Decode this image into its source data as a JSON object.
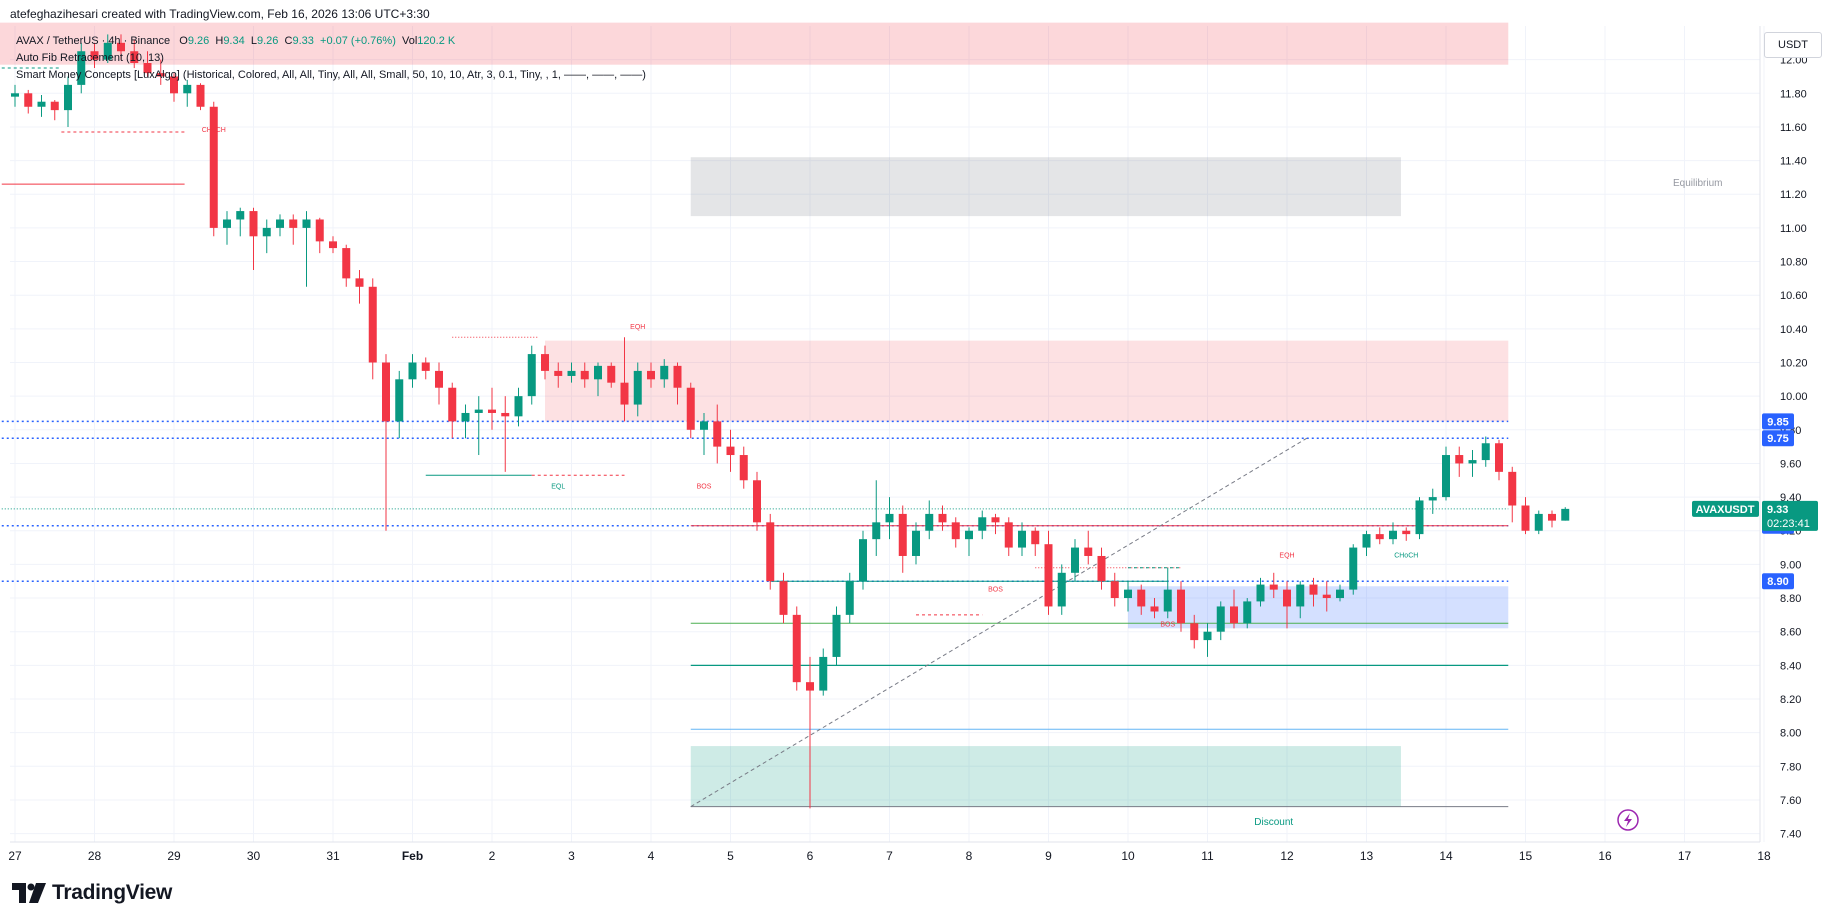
{
  "header": {
    "credit": "atefeghazihesari created with TradingView.com, Feb 16, 2026 13:06 UTC+3:30",
    "symbol": "AVAX / TetherUS · 4h · Binance",
    "open_label": "O",
    "open": "9.26",
    "high_label": "H",
    "high": "9.34",
    "low_label": "L",
    "low": "9.26",
    "close_label": "C",
    "close": "9.33",
    "change": "+0.07 (+0.76%)",
    "vol_label": "Vol",
    "volume": "120.2 K",
    "indicator1": "Auto Fib Retracement (10, 13)",
    "indicator2": "Smart Money Concepts [LuxAlgo] (Historical, Colored, All, All, Tiny, All, All, Small, 50, 10, 10, Atr, 3, 0.1, Tiny, , 1, ——, ——, ——)"
  },
  "footer": {
    "brand": "TradingView"
  },
  "axis": {
    "unit": "USDT"
  },
  "colors": {
    "up": "#089981",
    "down": "#f23645",
    "bg": "#ffffff",
    "grid": "#f0f3fa",
    "blue": "#2962ff"
  },
  "chart_data": {
    "type": "candlestick",
    "ylim": [
      7.35,
      12.2
    ],
    "yticks": [
      "12.00",
      "11.80",
      "11.60",
      "11.40",
      "11.20",
      "11.00",
      "10.80",
      "10.60",
      "10.40",
      "10.20",
      "10.00",
      "9.80",
      "9.60",
      "9.40",
      "9.20",
      "9.00",
      "8.80",
      "8.60",
      "8.40",
      "8.20",
      "8.00",
      "7.80",
      "7.60",
      "7.40"
    ],
    "xticks": [
      {
        "label": "27",
        "i": 0
      },
      {
        "label": "28",
        "i": 6
      },
      {
        "label": "29",
        "i": 12
      },
      {
        "label": "30",
        "i": 18
      },
      {
        "label": "31",
        "i": 24
      },
      {
        "label": "Feb",
        "i": 30
      },
      {
        "label": "2",
        "i": 36
      },
      {
        "label": "3",
        "i": 42
      },
      {
        "label": "4",
        "i": 48
      },
      {
        "label": "5",
        "i": 54
      },
      {
        "label": "6",
        "i": 60
      },
      {
        "label": "7",
        "i": 66
      },
      {
        "label": "8",
        "i": 72
      },
      {
        "label": "9",
        "i": 78
      },
      {
        "label": "10",
        "i": 84
      },
      {
        "label": "11",
        "i": 90
      },
      {
        "label": "12",
        "i": 96
      },
      {
        "label": "13",
        "i": 102
      },
      {
        "label": "14",
        "i": 108
      },
      {
        "label": "15",
        "i": 114
      },
      {
        "label": "16",
        "i": 120
      },
      {
        "label": "17",
        "i": 126
      },
      {
        "label": "18",
        "i": 132
      }
    ],
    "ohlc": [
      [
        11.78,
        11.85,
        11.72,
        11.8
      ],
      [
        11.8,
        11.82,
        11.68,
        11.72
      ],
      [
        11.72,
        11.79,
        11.66,
        11.75
      ],
      [
        11.75,
        11.76,
        11.64,
        11.7
      ],
      [
        11.7,
        11.9,
        11.6,
        11.85
      ],
      [
        11.85,
        12.1,
        11.8,
        12.05
      ],
      [
        12.05,
        12.1,
        11.95,
        12.0
      ],
      [
        12.0,
        12.15,
        11.98,
        12.1
      ],
      [
        12.1,
        12.15,
        12.0,
        12.05
      ],
      [
        12.05,
        12.12,
        11.95,
        11.98
      ],
      [
        11.98,
        12.05,
        11.9,
        11.92
      ],
      [
        11.92,
        12.0,
        11.85,
        11.9
      ],
      [
        11.9,
        11.92,
        11.75,
        11.8
      ],
      [
        11.8,
        11.88,
        11.72,
        11.85
      ],
      [
        11.85,
        11.86,
        11.7,
        11.72
      ],
      [
        11.72,
        11.75,
        10.95,
        11.0
      ],
      [
        11.0,
        11.1,
        10.9,
        11.05
      ],
      [
        11.05,
        11.12,
        10.95,
        11.1
      ],
      [
        11.1,
        11.12,
        10.75,
        10.95
      ],
      [
        10.95,
        11.05,
        10.85,
        11.0
      ],
      [
        11.0,
        11.08,
        10.95,
        11.05
      ],
      [
        11.05,
        11.08,
        10.9,
        11.0
      ],
      [
        11.0,
        11.1,
        10.65,
        11.05
      ],
      [
        11.05,
        11.06,
        10.85,
        10.92
      ],
      [
        10.92,
        10.95,
        10.85,
        10.88
      ],
      [
        10.88,
        10.9,
        10.65,
        10.7
      ],
      [
        10.7,
        10.75,
        10.55,
        10.65
      ],
      [
        10.65,
        10.7,
        10.1,
        10.2
      ],
      [
        10.2,
        10.25,
        9.2,
        9.85
      ],
      [
        9.85,
        10.15,
        9.75,
        10.1
      ],
      [
        10.1,
        10.25,
        10.05,
        10.2
      ],
      [
        10.2,
        10.23,
        10.1,
        10.15
      ],
      [
        10.15,
        10.2,
        9.95,
        10.05
      ],
      [
        10.05,
        10.08,
        9.75,
        9.85
      ],
      [
        9.85,
        9.95,
        9.75,
        9.9
      ],
      [
        9.9,
        10.0,
        9.65,
        9.92
      ],
      [
        9.92,
        10.05,
        9.8,
        9.9
      ],
      [
        9.9,
        10.0,
        9.55,
        9.88
      ],
      [
        9.88,
        10.05,
        9.82,
        10.0
      ],
      [
        10.0,
        10.3,
        9.95,
        10.25
      ],
      [
        10.25,
        10.3,
        10.1,
        10.15
      ],
      [
        10.15,
        10.2,
        10.05,
        10.12
      ],
      [
        10.12,
        10.2,
        10.08,
        10.15
      ],
      [
        10.15,
        10.2,
        10.05,
        10.1
      ],
      [
        10.1,
        10.2,
        10.0,
        10.18
      ],
      [
        10.18,
        10.2,
        10.05,
        10.08
      ],
      [
        10.08,
        10.35,
        9.85,
        9.95
      ],
      [
        9.95,
        10.2,
        9.88,
        10.15
      ],
      [
        10.15,
        10.2,
        10.05,
        10.1
      ],
      [
        10.1,
        10.22,
        10.05,
        10.18
      ],
      [
        10.18,
        10.2,
        9.95,
        10.05
      ],
      [
        10.05,
        10.08,
        9.75,
        9.8
      ],
      [
        9.8,
        9.9,
        9.65,
        9.85
      ],
      [
        9.85,
        9.95,
        9.6,
        9.7
      ],
      [
        9.7,
        9.8,
        9.55,
        9.65
      ],
      [
        9.65,
        9.7,
        9.45,
        9.5
      ],
      [
        9.5,
        9.55,
        9.2,
        9.25
      ],
      [
        9.25,
        9.3,
        8.85,
        8.9
      ],
      [
        8.9,
        8.95,
        8.65,
        8.7
      ],
      [
        8.7,
        8.75,
        8.25,
        8.3
      ],
      [
        8.3,
        8.45,
        7.55,
        8.25
      ],
      [
        8.25,
        8.5,
        8.22,
        8.45
      ],
      [
        8.45,
        8.75,
        8.4,
        8.7
      ],
      [
        8.7,
        8.95,
        8.65,
        8.9
      ],
      [
        8.9,
        9.2,
        8.85,
        9.15
      ],
      [
        9.15,
        9.5,
        9.05,
        9.25
      ],
      [
        9.25,
        9.4,
        9.15,
        9.3
      ],
      [
        9.3,
        9.35,
        8.95,
        9.05
      ],
      [
        9.05,
        9.25,
        9.0,
        9.2
      ],
      [
        9.2,
        9.38,
        9.15,
        9.3
      ],
      [
        9.3,
        9.35,
        9.2,
        9.25
      ],
      [
        9.25,
        9.28,
        9.1,
        9.15
      ],
      [
        9.15,
        9.22,
        9.05,
        9.2
      ],
      [
        9.2,
        9.32,
        9.15,
        9.28
      ],
      [
        9.28,
        9.3,
        9.18,
        9.25
      ],
      [
        9.25,
        9.28,
        9.05,
        9.1
      ],
      [
        9.1,
        9.25,
        9.05,
        9.2
      ],
      [
        9.2,
        9.22,
        9.05,
        9.12
      ],
      [
        9.12,
        9.2,
        8.7,
        8.75
      ],
      [
        8.75,
        9.0,
        8.7,
        8.95
      ],
      [
        8.95,
        9.15,
        8.9,
        9.1
      ],
      [
        9.1,
        9.2,
        9.0,
        9.05
      ],
      [
        9.05,
        9.1,
        8.85,
        8.9
      ],
      [
        8.9,
        8.95,
        8.75,
        8.8
      ],
      [
        8.8,
        8.9,
        8.72,
        8.85
      ],
      [
        8.85,
        8.88,
        8.7,
        8.75
      ],
      [
        8.75,
        8.8,
        8.68,
        8.72
      ],
      [
        8.72,
        8.98,
        8.68,
        8.85
      ],
      [
        8.85,
        8.9,
        8.6,
        8.65
      ],
      [
        8.65,
        8.7,
        8.5,
        8.55
      ],
      [
        8.55,
        8.65,
        8.45,
        8.6
      ],
      [
        8.6,
        8.78,
        8.55,
        8.75
      ],
      [
        8.75,
        8.85,
        8.62,
        8.65
      ],
      [
        8.65,
        8.8,
        8.62,
        8.78
      ],
      [
        8.78,
        8.92,
        8.75,
        8.88
      ],
      [
        8.88,
        8.95,
        8.8,
        8.85
      ],
      [
        8.85,
        8.9,
        8.62,
        8.75
      ],
      [
        8.75,
        8.9,
        8.68,
        8.88
      ],
      [
        8.88,
        8.92,
        8.75,
        8.82
      ],
      [
        8.82,
        8.9,
        8.72,
        8.8
      ],
      [
        8.8,
        8.88,
        8.78,
        8.85
      ],
      [
        8.85,
        9.12,
        8.82,
        9.1
      ],
      [
        9.1,
        9.2,
        9.05,
        9.18
      ],
      [
        9.18,
        9.22,
        9.12,
        9.15
      ],
      [
        9.15,
        9.25,
        9.12,
        9.2
      ],
      [
        9.2,
        9.22,
        9.14,
        9.18
      ],
      [
        9.18,
        9.4,
        9.15,
        9.38
      ],
      [
        9.38,
        9.45,
        9.3,
        9.4
      ],
      [
        9.4,
        9.7,
        9.38,
        9.65
      ],
      [
        9.65,
        9.7,
        9.52,
        9.6
      ],
      [
        9.6,
        9.68,
        9.52,
        9.62
      ],
      [
        9.62,
        9.76,
        9.58,
        9.72
      ],
      [
        9.72,
        9.74,
        9.5,
        9.55
      ],
      [
        9.55,
        9.58,
        9.25,
        9.35
      ],
      [
        9.35,
        9.4,
        9.18,
        9.2
      ],
      [
        9.2,
        9.32,
        9.18,
        9.3
      ],
      [
        9.3,
        9.32,
        9.22,
        9.26
      ],
      [
        9.26,
        9.34,
        9.26,
        9.33
      ]
    ],
    "price_labels": [
      {
        "label": "9.85",
        "value": 9.85,
        "color": "#2962ff"
      },
      {
        "label": "9.75",
        "value": 9.75,
        "color": "#2962ff"
      },
      {
        "label": "9.23",
        "value": 9.23,
        "color": "#2962ff"
      },
      {
        "label": "8.90",
        "value": 8.9,
        "color": "#2962ff"
      }
    ],
    "current": {
      "symbol": "AVAXUSDT",
      "value": 9.33,
      "price": "9.33",
      "countdown": "02:23:41",
      "color": "#089981"
    },
    "annotations": [
      {
        "text": "CHoCH",
        "i": 15,
        "y": 11.57,
        "color": "#f23645"
      },
      {
        "text": "EQH",
        "i": 47,
        "y": 10.4,
        "color": "#f23645"
      },
      {
        "text": "EQL",
        "i": 41,
        "y": 9.45,
        "color": "#089981"
      },
      {
        "text": "BOS",
        "i": 52,
        "y": 9.45,
        "color": "#f23645"
      },
      {
        "text": "BOS",
        "i": 74,
        "y": 8.84,
        "color": "#f23645"
      },
      {
        "text": "BOS",
        "i": 87,
        "y": 8.63,
        "color": "#f23645"
      },
      {
        "text": "EQH",
        "i": 96,
        "y": 9.04,
        "color": "#f23645"
      },
      {
        "text": "CHoCH",
        "i": 105,
        "y": 9.04,
        "color": "#089981"
      },
      {
        "text": "Equilibrium",
        "i": 127,
        "y": 11.25,
        "color": "#9598a1"
      },
      {
        "text": "Discount",
        "i": 95,
        "y": 7.45,
        "color": "#089981"
      }
    ]
  }
}
